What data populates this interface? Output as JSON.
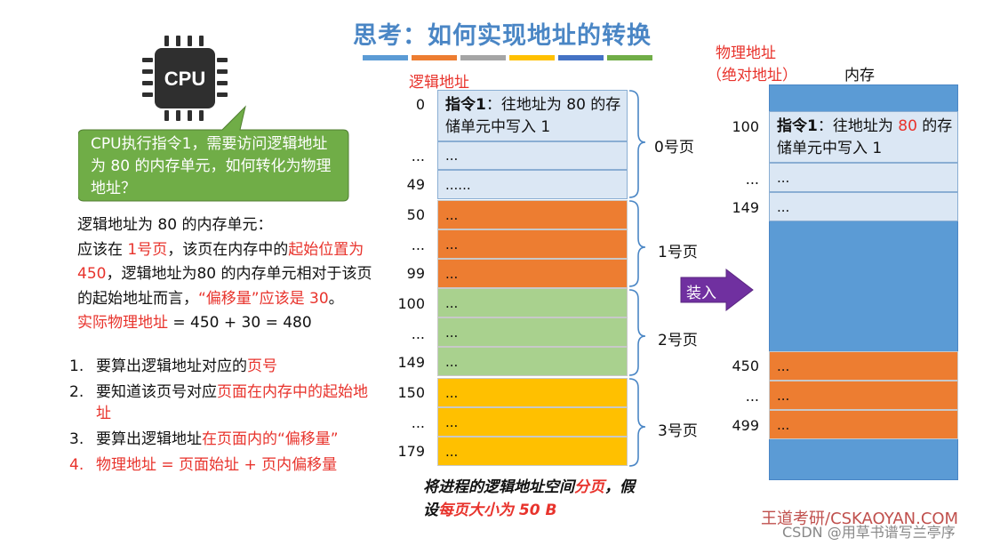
{
  "title": "思考：如何实现地址的转换",
  "stripe_colors": [
    "#5b9bd5",
    "#ed7d31",
    "#a5a5a5",
    "#ffc000",
    "#4472c4",
    "#70ad47"
  ],
  "cpu": {
    "label": "CPU",
    "icon": "cpu-chip-icon"
  },
  "bubble": {
    "text": "CPU执行指令1，需要访问逻辑地址为 80 的内存单元，如何转化为物理地址？",
    "color": "#70ad47"
  },
  "explanation": {
    "p1": "逻辑地址为 80 的内存单元：",
    "p2a": "应该在 ",
    "p2b": "1号页",
    "p2c": "，该页在内存中的",
    "p2d": "起始位置为 450",
    "p2e": "，逻辑地址为80 的内存单元相对于该页的起始地址而言，",
    "p2f": "“偏移量”应该是 30",
    "p2g": "。",
    "p3a": "实际物理地址",
    "p3b": " = 450 + 30 = 480"
  },
  "steps": [
    {
      "num": "1.",
      "a": "要算出逻辑地址对应的",
      "b": "页号",
      "c": ""
    },
    {
      "num": "2.",
      "a": "要知道该页号对应",
      "b": "页面在内存中的起始地址",
      "c": ""
    },
    {
      "num": "3.",
      "a": "要算出逻辑地址",
      "b": "在页面内的“偏移量”",
      "c": ""
    },
    {
      "num": "4.",
      "a": "",
      "b": "物理地址 = 页面始址 + 页内偏移量",
      "c": ""
    }
  ],
  "logical": {
    "header": "逻辑地址",
    "instr_bold": "指令1",
    "instr_text": "：往地址为 80 的存储单元中写入 1",
    "dots": "...",
    "dots6": "......",
    "addresses": [
      "0",
      "...",
      "49",
      "50",
      "...",
      "99",
      "100",
      "...",
      "149",
      "150",
      "...",
      "179"
    ],
    "pages": [
      "0号页",
      "1号页",
      "2号页",
      "3号页"
    ]
  },
  "caption": {
    "a": "将进程的逻辑地址空间",
    "b": "分页",
    "c": "，假设",
    "d": "每页大小为 50 B"
  },
  "load_label": "装入",
  "physical": {
    "header1": "物理地址",
    "header2": "（绝对地址）",
    "memory_label": "内存",
    "instr_bold": "指令1",
    "instr_text_a": "：往地址为 ",
    "instr_num": "80",
    "instr_text_b": " 的存储单元中写入 1",
    "dots": "...",
    "addresses": [
      "100",
      "...",
      "149",
      "450",
      "...",
      "499"
    ]
  },
  "watermark": "王道考研/CSKAOYAN.COM",
  "csdn": "CSDN @用草书谱写兰亭序"
}
